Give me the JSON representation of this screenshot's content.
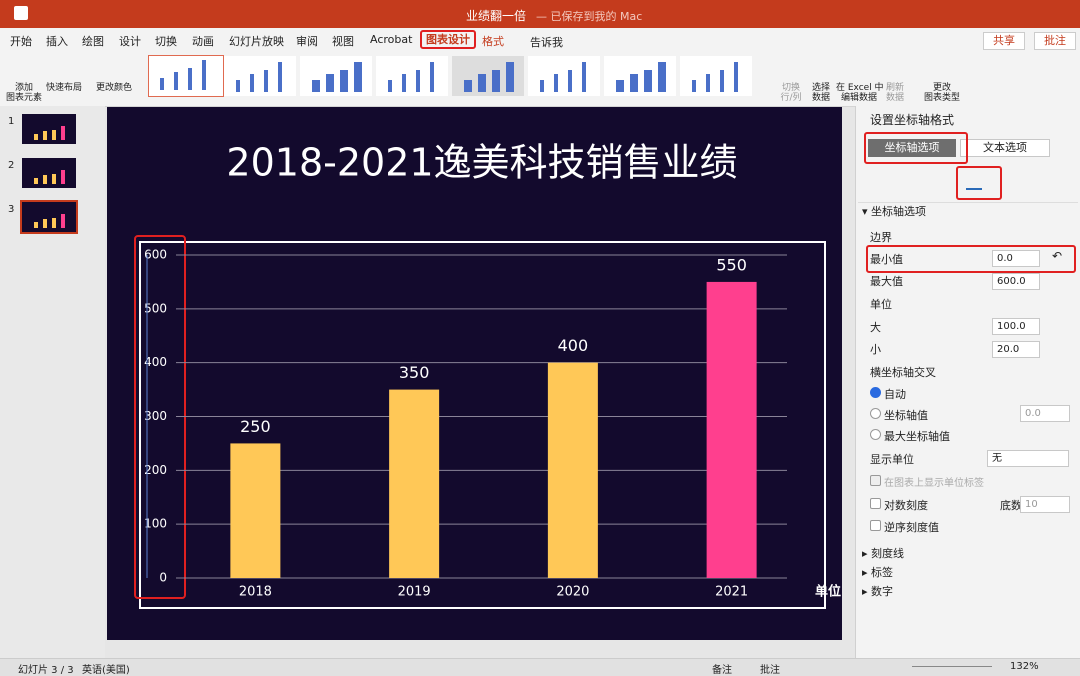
{
  "window": {
    "title": "业绩翻一倍",
    "status": "— 已保存到我的 Mac"
  },
  "tabs": [
    "开始",
    "插入",
    "绘图",
    "设计",
    "切换",
    "动画",
    "幻灯片放映",
    "审阅",
    "视图",
    "Acrobat",
    "图表设计",
    "格式"
  ],
  "tell_me": "告诉我",
  "share": "共享",
  "comments": "批注",
  "ribbon": {
    "add_element": [
      "添加",
      "图表元素"
    ],
    "quick_layout": "快速布局",
    "change_colors": "更改颜色",
    "switch": [
      "切换",
      "行/列"
    ],
    "select_data": [
      "选择",
      "数据"
    ],
    "edit_excel": [
      "在 Excel 中",
      "编辑数据"
    ],
    "refresh": [
      "刷新",
      "数据"
    ],
    "change_type": [
      "更改",
      "图表类型"
    ]
  },
  "slides": [
    "1",
    "2",
    "3"
  ],
  "chart_data": {
    "type": "bar",
    "title": "2018-2021逸美科技销售业绩",
    "categories": [
      "2018",
      "2019",
      "2020",
      "2021"
    ],
    "values": [
      250,
      350,
      400,
      550
    ],
    "colors": [
      "#ffc857",
      "#ffc857",
      "#ffc857",
      "#ff3f8e"
    ],
    "ylim": [
      0,
      600
    ],
    "yticks": [
      0,
      100,
      200,
      300,
      400,
      500,
      600
    ],
    "grid": true,
    "unit_label": "单位:"
  },
  "pane": {
    "title": "设置坐标轴格式",
    "tabs": [
      "坐标轴选项",
      "文本选项"
    ],
    "section": "坐标轴选项",
    "bounds": "边界",
    "min_label": "最小值",
    "min_value": "0.0",
    "max_label": "最大值",
    "max_value": "600.0",
    "units": "单位",
    "major_label": "大",
    "major_value": "100.0",
    "minor_label": "小",
    "minor_value": "20.0",
    "cross": "横坐标轴交叉",
    "cross_options": [
      "自动",
      "坐标轴值",
      "最大坐标轴值"
    ],
    "cross_value": "0.0",
    "display_units": "显示单位",
    "display_units_value": "无",
    "show_unit_label": "在图表上显示单位标签",
    "log_scale": "对数刻度",
    "base_label": "底数",
    "base_value": "10",
    "reverse": "逆序刻度值",
    "collapsed": [
      "刻度线",
      "标签",
      "数字"
    ]
  },
  "status": {
    "slide": "幻灯片 3 / 3",
    "language": "英语(美国)",
    "notes": "备注",
    "comments": "批注",
    "zoom": "132%"
  }
}
